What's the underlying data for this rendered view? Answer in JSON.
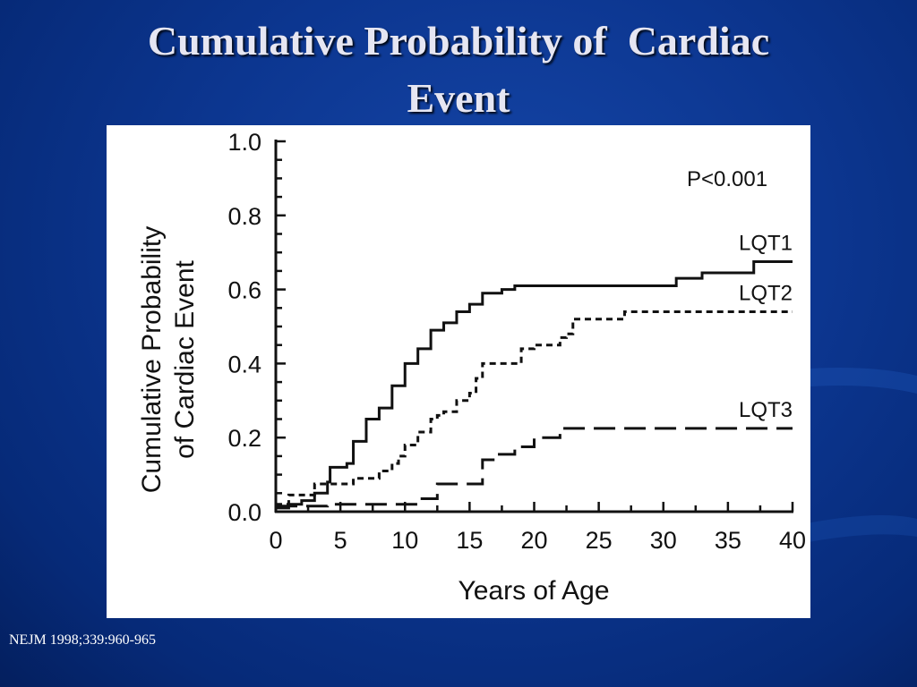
{
  "slide": {
    "title_line1": "Cumulative Probability of  Cardiac",
    "title_line2": "Event",
    "citation": "NEJM 1998;339:960-965",
    "background_color": "#0c3690",
    "title_color": "#e6e6f2"
  },
  "chart_data": {
    "type": "line",
    "xlabel": "Years of Age",
    "ylabel_line1": "Cumulative Probability",
    "ylabel_line2": "of Cardiac Event",
    "xlim": [
      0,
      40
    ],
    "ylim": [
      0,
      1.0
    ],
    "x_ticks": [
      "0",
      "5",
      "10",
      "15",
      "20",
      "25",
      "30",
      "35",
      "40"
    ],
    "y_ticks": [
      "0.0",
      "0.2",
      "0.4",
      "0.6",
      "0.8",
      "1.0"
    ],
    "annotation": "P<0.001",
    "grid": false,
    "series": [
      {
        "name": "LQT1",
        "style": "solid",
        "points": [
          [
            0,
            0.01
          ],
          [
            1,
            0.02
          ],
          [
            2,
            0.03
          ],
          [
            3,
            0.05
          ],
          [
            4,
            0.08
          ],
          [
            4.2,
            0.12
          ],
          [
            5.5,
            0.13
          ],
          [
            6,
            0.19
          ],
          [
            7,
            0.25
          ],
          [
            8,
            0.28
          ],
          [
            9,
            0.34
          ],
          [
            10,
            0.4
          ],
          [
            11,
            0.44
          ],
          [
            12,
            0.49
          ],
          [
            13,
            0.51
          ],
          [
            14,
            0.54
          ],
          [
            15,
            0.56
          ],
          [
            16,
            0.59
          ],
          [
            17.5,
            0.6
          ],
          [
            18.5,
            0.61
          ],
          [
            31,
            0.63
          ],
          [
            33,
            0.645
          ],
          [
            37,
            0.675
          ],
          [
            40,
            0.675
          ]
        ]
      },
      {
        "name": "LQT2",
        "style": "dashed",
        "points": [
          [
            0,
            0.02
          ],
          [
            1,
            0.045
          ],
          [
            3,
            0.075
          ],
          [
            6,
            0.09
          ],
          [
            8,
            0.11
          ],
          [
            9,
            0.13
          ],
          [
            9.5,
            0.15
          ],
          [
            10,
            0.18
          ],
          [
            11,
            0.215
          ],
          [
            12,
            0.25
          ],
          [
            12.5,
            0.26
          ],
          [
            13,
            0.27
          ],
          [
            14,
            0.3
          ],
          [
            15,
            0.32
          ],
          [
            15.5,
            0.36
          ],
          [
            16,
            0.4
          ],
          [
            19,
            0.44
          ],
          [
            20,
            0.45
          ],
          [
            22,
            0.47
          ],
          [
            22.5,
            0.48
          ],
          [
            23,
            0.52
          ],
          [
            27,
            0.54
          ],
          [
            40,
            0.54
          ]
        ]
      },
      {
        "name": "LQT3",
        "style": "longdash",
        "points": [
          [
            0,
            0.015
          ],
          [
            4,
            0.02
          ],
          [
            11,
            0.035
          ],
          [
            12.5,
            0.075
          ],
          [
            16,
            0.14
          ],
          [
            17,
            0.155
          ],
          [
            18.5,
            0.175
          ],
          [
            20,
            0.2
          ],
          [
            22,
            0.225
          ],
          [
            40,
            0.225
          ]
        ]
      }
    ]
  }
}
